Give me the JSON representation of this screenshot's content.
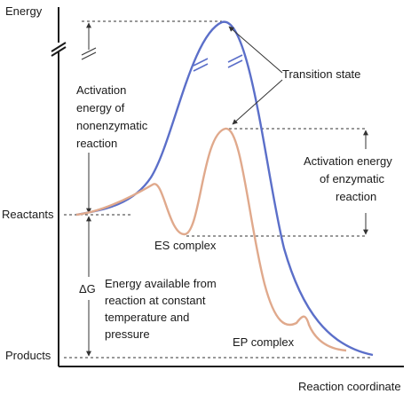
{
  "diagram": {
    "axes": {
      "y_label": "Energy",
      "x_label": "Reaction coordinate",
      "y_ticks": [
        "Reactants",
        "Products"
      ]
    },
    "curves": {
      "nonenzymatic": {
        "color": "#5b6fc9"
      },
      "enzymatic": {
        "color": "#e0a98c"
      }
    },
    "annotations": {
      "transition_state": "Transition state",
      "activation_nonenzymatic": [
        "Activation",
        "energy of",
        "nonenzymatic",
        "reaction"
      ],
      "activation_enzymatic": [
        "Activation energy",
        "of enzymatic",
        "reaction"
      ],
      "es_complex": "ES complex",
      "ep_complex": "EP complex",
      "delta_g_symbol": "ΔG",
      "energy_available": [
        "Energy available from",
        "reaction at constant",
        "temperature and",
        "pressure"
      ]
    }
  }
}
